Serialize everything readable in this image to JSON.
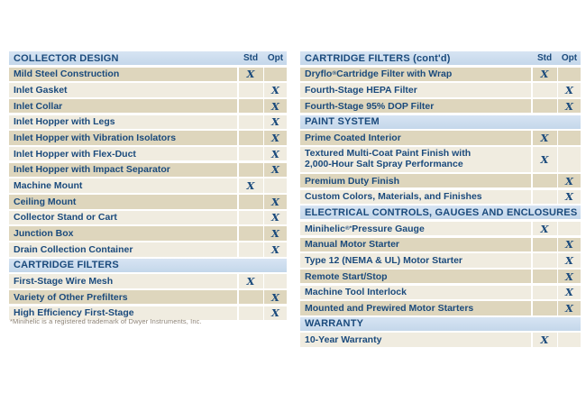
{
  "colors": {
    "header_bg": "#c4d7ea",
    "header_bg_top": "#d7e4f3",
    "row_dark": "#ded6bd",
    "row_light": "#f0ece0",
    "text_navy": "#1a4a7c",
    "footnote": "#8b8174",
    "page_bg": "#ffffff"
  },
  "columns": {
    "std_label": "Std",
    "opt_label": "Opt"
  },
  "mark_glyph": "X",
  "footnote": "*Minihelic is a registered trademark of Dwyer Instruments, Inc.",
  "left_table": {
    "sections": [
      {
        "title": "COLLECTOR DESIGN",
        "show_cols": true,
        "rows": [
          {
            "label": "Mild Steel Construction",
            "std": true,
            "opt": false,
            "shade": "dark"
          },
          {
            "label": "Inlet Gasket",
            "std": false,
            "opt": true,
            "shade": "light"
          },
          {
            "label": "Inlet Collar",
            "std": false,
            "opt": true,
            "shade": "dark"
          },
          {
            "label": "Inlet Hopper with Legs",
            "std": false,
            "opt": true,
            "shade": "light"
          },
          {
            "label": "Inlet Hopper with Vibration Isolators",
            "std": false,
            "opt": true,
            "shade": "dark"
          },
          {
            "label": "Inlet Hopper with Flex-Duct",
            "std": false,
            "opt": true,
            "shade": "light"
          },
          {
            "label": "Inlet Hopper with Impact Separator",
            "std": false,
            "opt": true,
            "shade": "dark"
          },
          {
            "label": "Machine Mount",
            "std": true,
            "opt": false,
            "shade": "light"
          },
          {
            "label": "Ceiling Mount",
            "std": false,
            "opt": true,
            "shade": "dark"
          },
          {
            "label": "Collector Stand or Cart",
            "std": false,
            "opt": true,
            "shade": "light"
          },
          {
            "label": "Junction Box",
            "std": false,
            "opt": true,
            "shade": "dark"
          },
          {
            "label": "Drain Collection Container",
            "std": false,
            "opt": true,
            "shade": "light"
          }
        ]
      },
      {
        "title": "CARTRIDGE FILTERS",
        "show_cols": false,
        "rows": [
          {
            "label": "First-Stage Wire Mesh",
            "std": true,
            "opt": false,
            "shade": "light"
          },
          {
            "label": "Variety of Other Prefilters",
            "std": false,
            "opt": true,
            "shade": "dark"
          },
          {
            "label": "High Efficiency First-Stage",
            "std": false,
            "opt": true,
            "shade": "light"
          }
        ]
      }
    ]
  },
  "right_table": {
    "sections": [
      {
        "title": "CARTRIDGE FILTERS (cont'd)",
        "show_cols": true,
        "rows": [
          {
            "label": "Dryflo",
            "sup": "®",
            "label_rest": " Cartridge Filter with Wrap",
            "std": true,
            "opt": false,
            "shade": "dark"
          },
          {
            "label": "Fourth-Stage HEPA Filter",
            "std": false,
            "opt": true,
            "shade": "light"
          },
          {
            "label": "Fourth-Stage 95% DOP Filter",
            "std": false,
            "opt": true,
            "shade": "dark"
          }
        ]
      },
      {
        "title": "PAINT SYSTEM",
        "show_cols": false,
        "rows": [
          {
            "label": "Prime Coated Interior",
            "std": true,
            "opt": false,
            "shade": "dark"
          },
          {
            "label": "Textured Multi-Coat Paint Finish with",
            "line2": "2,000-Hour Salt Spray Performance",
            "std": true,
            "opt": false,
            "shade": "light"
          },
          {
            "label": "Premium Duty Finish",
            "std": false,
            "opt": true,
            "shade": "dark"
          },
          {
            "label": "Custom Colors, Materials, and Finishes",
            "std": false,
            "opt": true,
            "shade": "light"
          }
        ]
      },
      {
        "title": "ELECTRICAL CONTROLS, GAUGES AND ENCLOSURES",
        "show_cols": false,
        "rows": [
          {
            "label": "Minihelic",
            "sup": "®*",
            "label_rest": " Pressure Gauge",
            "std": true,
            "opt": false,
            "shade": "light"
          },
          {
            "label": "Manual Motor Starter",
            "std": false,
            "opt": true,
            "shade": "dark"
          },
          {
            "label": "Type 12 (NEMA & UL) Motor Starter",
            "std": false,
            "opt": true,
            "shade": "light"
          },
          {
            "label": "Remote Start/Stop",
            "std": false,
            "opt": true,
            "shade": "dark"
          },
          {
            "label": "Machine Tool Interlock",
            "std": false,
            "opt": true,
            "shade": "light"
          },
          {
            "label": "Mounted and Prewired Motor Starters",
            "std": false,
            "opt": true,
            "shade": "dark"
          }
        ]
      },
      {
        "title": "WARRANTY",
        "show_cols": false,
        "rows": [
          {
            "label": "10-Year Warranty",
            "std": true,
            "opt": false,
            "shade": "light"
          }
        ]
      }
    ]
  }
}
